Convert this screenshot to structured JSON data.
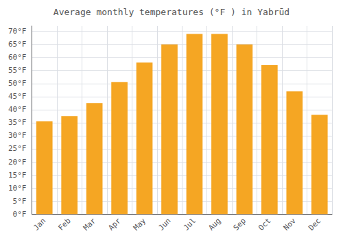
{
  "chart_data": {
    "type": "bar",
    "title": "Average monthly temperatures (°F ) in Yabrūd",
    "categories": [
      "Jan",
      "Feb",
      "Mar",
      "Apr",
      "May",
      "Jun",
      "Jul",
      "Aug",
      "Sep",
      "Oct",
      "Nov",
      "Dec"
    ],
    "values": [
      35.5,
      37.5,
      42.5,
      50.5,
      58.0,
      65.0,
      69.0,
      69.0,
      65.0,
      57.0,
      47.0,
      38.0
    ],
    "color": "#F5A623",
    "ylim": [
      0,
      72
    ],
    "yticks": [
      {
        "value": 0,
        "label": "0°F"
      },
      {
        "value": 5,
        "label": "5°F"
      },
      {
        "value": 10,
        "label": "10°F"
      },
      {
        "value": 15,
        "label": "15°F"
      },
      {
        "value": 20,
        "label": "20°F"
      },
      {
        "value": 25,
        "label": "25°F"
      },
      {
        "value": 30,
        "label": "30°F"
      },
      {
        "value": 35,
        "label": "35°F"
      },
      {
        "value": 40,
        "label": "40°F"
      },
      {
        "value": 45,
        "label": "45°F"
      },
      {
        "value": 50,
        "label": "50°F"
      },
      {
        "value": 55,
        "label": "55°F"
      },
      {
        "value": 60,
        "label": "60°F"
      },
      {
        "value": 65,
        "label": "65°F"
      },
      {
        "value": 70,
        "label": "70°F"
      }
    ],
    "grid": true
  }
}
